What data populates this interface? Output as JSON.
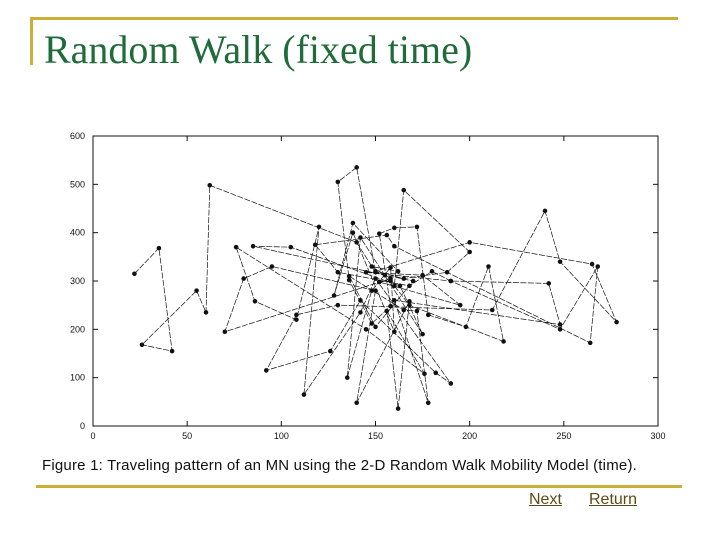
{
  "slide": {
    "title": "Random Walk (fixed time)",
    "caption": "Figure 1: Traveling pattern of an MN using the 2-D Random Walk Mobility Model (time).",
    "nav": {
      "next": "Next",
      "return": "Return"
    }
  },
  "colors": {
    "frame": "#c9b037",
    "title": "#1f6b3a",
    "nav": "#5b4a16",
    "plot": "#111111"
  },
  "chart_data": {
    "type": "line",
    "title": "",
    "xlabel": "",
    "ylabel": "",
    "xlim": [
      0,
      300
    ],
    "ylim": [
      0,
      600
    ],
    "xticks": [
      0,
      50,
      100,
      150,
      200,
      250,
      300
    ],
    "yticks": [
      0,
      100,
      200,
      300,
      400,
      500,
      600
    ],
    "grid": false,
    "series": [
      {
        "name": "",
        "points": [
          [
            22,
            315
          ],
          [
            35,
            368
          ],
          [
            42,
            155
          ],
          [
            26,
            168
          ],
          [
            55,
            280
          ],
          [
            60,
            235
          ],
          [
            62,
            498
          ],
          [
            140,
            380
          ],
          [
            150,
            318
          ],
          [
            140,
            535
          ],
          [
            130,
            505
          ],
          [
            136,
            302
          ],
          [
            148,
            212
          ],
          [
            158,
            248
          ],
          [
            152,
            398
          ],
          [
            160,
            410
          ],
          [
            172,
            412
          ],
          [
            178,
            230
          ],
          [
            198,
            205
          ],
          [
            210,
            330
          ],
          [
            218,
            175
          ],
          [
            168,
            250
          ],
          [
            160,
            290
          ],
          [
            165,
            488
          ],
          [
            200,
            360
          ],
          [
            188,
            318
          ],
          [
            165,
            305
          ],
          [
            150,
            320
          ],
          [
            200,
            380
          ],
          [
            265,
            335
          ],
          [
            278,
            215
          ],
          [
            248,
            340
          ],
          [
            240,
            445
          ],
          [
            212,
            240
          ],
          [
            130,
            250
          ],
          [
            108,
            230
          ],
          [
            92,
            115
          ],
          [
            126,
            155
          ],
          [
            142,
            260
          ],
          [
            182,
            110
          ],
          [
            190,
            88
          ],
          [
            150,
            305
          ],
          [
            142,
            235
          ],
          [
            112,
            65
          ],
          [
            120,
            412
          ],
          [
            108,
            220
          ],
          [
            86,
            258
          ],
          [
            76,
            370
          ],
          [
            145,
            200
          ],
          [
            176,
            108
          ],
          [
            156,
            238
          ],
          [
            162,
            36
          ],
          [
            168,
            258
          ],
          [
            140,
            48
          ],
          [
            150,
            280
          ],
          [
            95,
            330
          ],
          [
            80,
            305
          ],
          [
            70,
            195
          ],
          [
            158,
            305
          ],
          [
            148,
            330
          ],
          [
            162,
            320
          ],
          [
            138,
            420
          ],
          [
            128,
            270
          ],
          [
            138,
            400
          ],
          [
            160,
            195
          ],
          [
            158,
            328
          ],
          [
            148,
            280
          ],
          [
            135,
            100
          ],
          [
            142,
            390
          ],
          [
            175,
            190
          ],
          [
            163,
            290
          ],
          [
            105,
            370
          ],
          [
            85,
            372
          ],
          [
            155,
            312
          ],
          [
            170,
            300
          ],
          [
            150,
            205
          ],
          [
            136,
            310
          ],
          [
            165,
            240
          ],
          [
            172,
            238
          ],
          [
            178,
            48
          ],
          [
            160,
            260
          ],
          [
            248,
            210
          ],
          [
            242,
            295
          ],
          [
            190,
            300
          ],
          [
            180,
            320
          ],
          [
            168,
            290
          ],
          [
            130,
            318
          ],
          [
            118,
            375
          ],
          [
            156,
            395
          ],
          [
            160,
            372
          ],
          [
            264,
            172
          ],
          [
            268,
            330
          ],
          [
            248,
            200
          ],
          [
            190,
            300
          ],
          [
            145,
            318
          ],
          [
            175,
            312
          ],
          [
            195,
            250
          ],
          [
            152,
            298
          ],
          [
            158,
            300
          ]
        ]
      }
    ]
  }
}
